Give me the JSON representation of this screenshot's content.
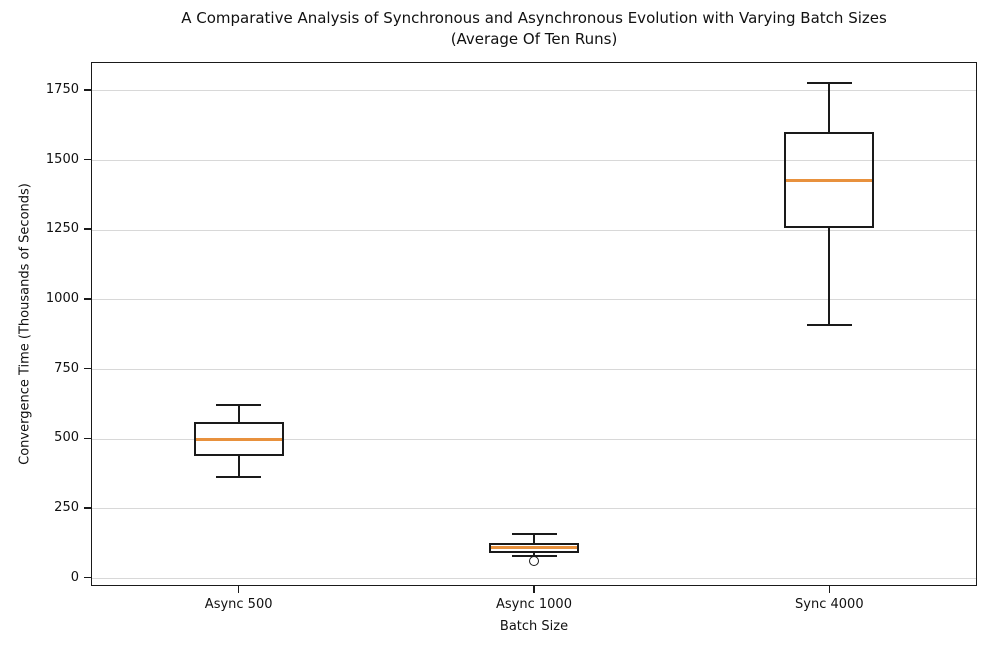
{
  "chart_data": {
    "type": "boxplot",
    "title": "A Comparative Analysis of Synchronous and Asynchronous Evolution with Varying Batch Sizes",
    "subtitle": "(Average Of Ten Runs)",
    "xlabel": "Batch Size",
    "ylabel": "Convergence Time (Thousands of Seconds)",
    "categories": [
      "Async 500",
      "Async 1000",
      "Sync 4000"
    ],
    "yticks": [
      0,
      250,
      500,
      750,
      1000,
      1250,
      1500,
      1750
    ],
    "ylim": [
      -30,
      1850
    ],
    "grid": "horizontal",
    "legend": "none",
    "series": [
      {
        "category": "Async 500",
        "whisker_low": 360,
        "q1": 435,
        "median": 495,
        "q3": 560,
        "whisker_high": 620,
        "outliers": []
      },
      {
        "category": "Async 1000",
        "whisker_low": 78,
        "q1": 90,
        "median": 108,
        "q3": 125,
        "whisker_high": 155,
        "outliers": [
          60
        ]
      },
      {
        "category": "Sync 4000",
        "whisker_low": 905,
        "q1": 1255,
        "median": 1425,
        "q3": 1600,
        "whisker_high": 1775,
        "outliers": []
      }
    ],
    "colors": {
      "median": "#e8913d",
      "box_line": "#1a1a1a",
      "grid": "#d8d8d8",
      "text": "#111111",
      "background": "#ffffff"
    }
  }
}
